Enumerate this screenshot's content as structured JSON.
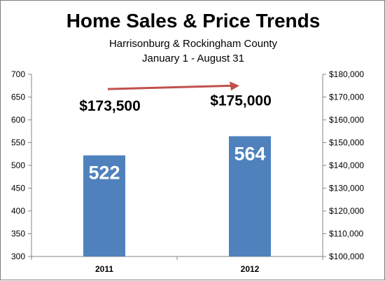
{
  "chart_data": {
    "type": "bar",
    "title": "Home Sales & Price Trends",
    "subtitle": "Harrisonburg & Rockingham County",
    "subtitle2": "January 1 - August 31",
    "categories": [
      "2011",
      "2012"
    ],
    "series": [
      {
        "values": [
          522,
          564
        ],
        "color": "#4f81bd",
        "axis": "left"
      },
      {
        "values": [
          173500,
          175000
        ],
        "color": "#c0504d",
        "axis": "right",
        "display": "arrow"
      }
    ],
    "bar_labels": [
      "522",
      "564"
    ],
    "price_labels": [
      "$173,500",
      "$175,000"
    ],
    "ylim": [
      300,
      700
    ],
    "y_ticks": [
      "300",
      "350",
      "400",
      "450",
      "500",
      "550",
      "600",
      "650",
      "700"
    ],
    "y2lim": [
      100000,
      180000
    ],
    "y2_ticks": [
      "$100,000",
      "$110,000",
      "$120,000",
      "$130,000",
      "$140,000",
      "$150,000",
      "$160,000",
      "$170,000",
      "$180,000"
    ],
    "grid": false,
    "legend": "none"
  }
}
